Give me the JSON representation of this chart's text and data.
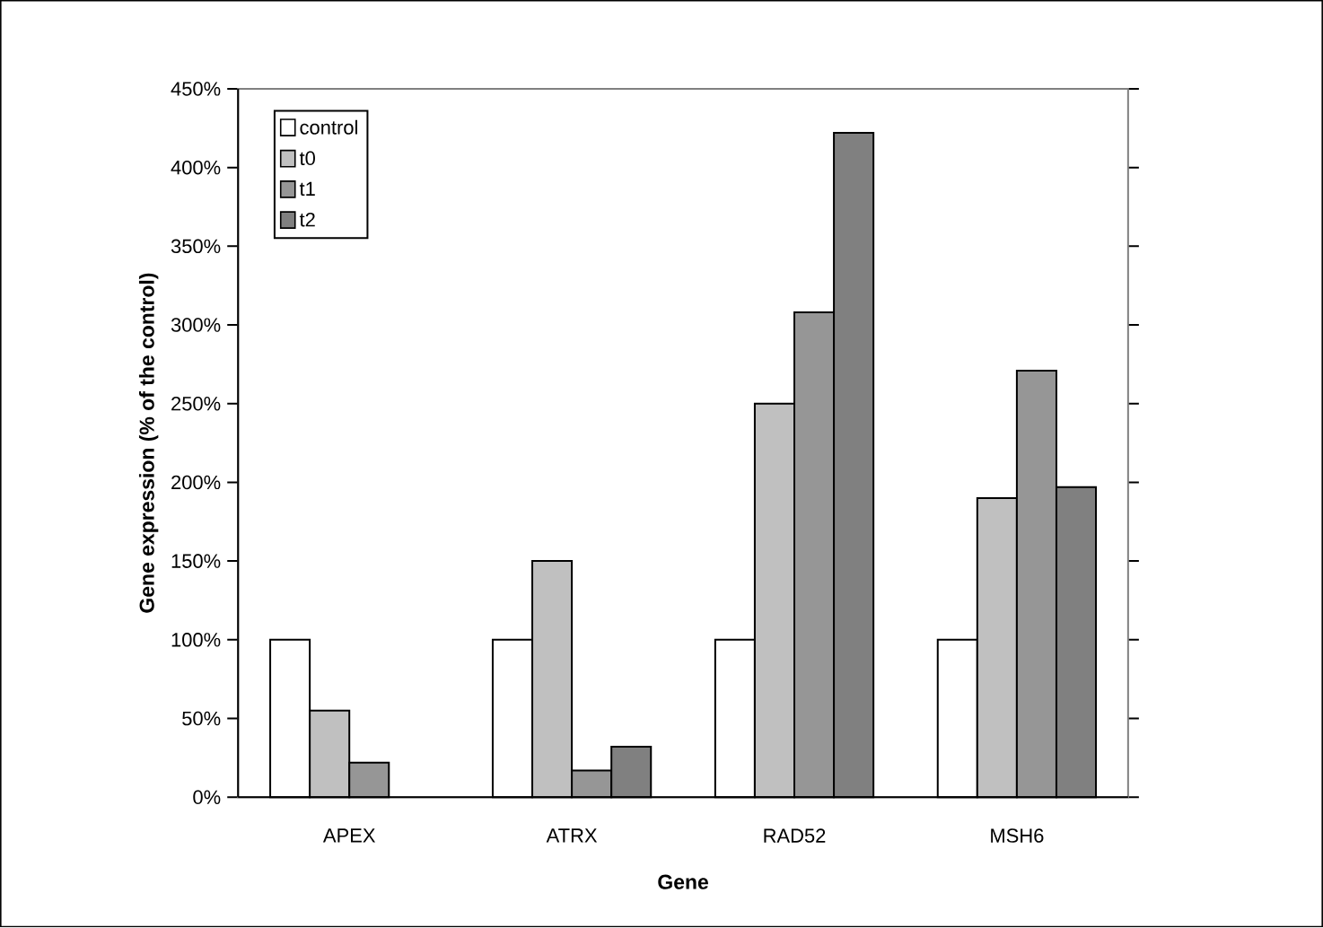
{
  "chart_data": {
    "type": "bar",
    "xlabel": "Gene",
    "ylabel": "Gene expression (% of the control)",
    "categories": [
      "APEX",
      "ATRX",
      "RAD52",
      "MSH6"
    ],
    "series": [
      {
        "name": "control",
        "color": "#ffffff",
        "values": [
          100,
          100,
          100,
          100
        ]
      },
      {
        "name": "t0",
        "color": "#c0c0c0",
        "values": [
          55,
          150,
          250,
          190
        ]
      },
      {
        "name": "t1",
        "color": "#969696",
        "values": [
          22,
          17,
          308,
          271
        ]
      },
      {
        "name": "t2",
        "color": "#808080",
        "values": [
          null,
          32,
          422,
          197
        ]
      }
    ],
    "ylim": [
      0,
      450
    ],
    "yticks": [
      {
        "value": 0,
        "label": "0%"
      },
      {
        "value": 50,
        "label": "50%"
      },
      {
        "value": 100,
        "label": "100%"
      },
      {
        "value": 150,
        "label": "150%"
      },
      {
        "value": 200,
        "label": "200%"
      },
      {
        "value": 250,
        "label": "250%"
      },
      {
        "value": 300,
        "label": "300%"
      },
      {
        "value": 350,
        "label": "350%"
      },
      {
        "value": 400,
        "label": "400%"
      },
      {
        "value": 450,
        "label": "450%"
      }
    ],
    "grid": false,
    "legend": "top left"
  }
}
